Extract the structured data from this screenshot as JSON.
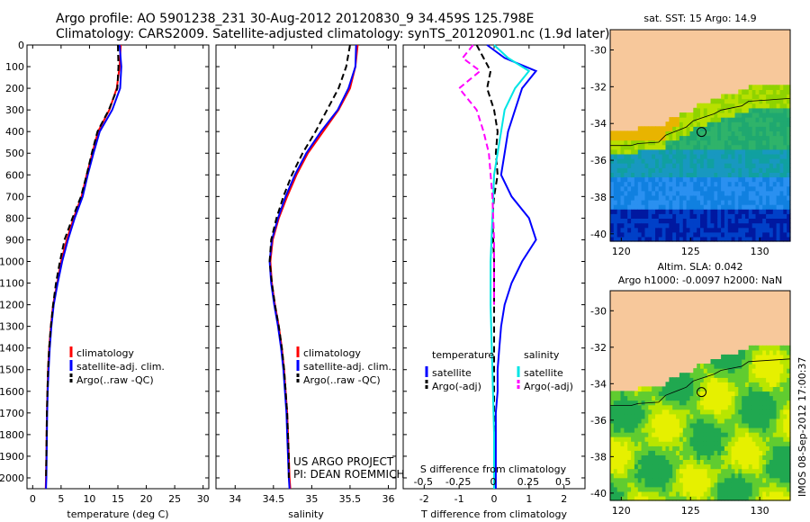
{
  "header": {
    "line1": "Argo profile: AO 5901238_231 30-Aug-2012 20120830_9 34.459S 125.798E",
    "line2": "Climatology: CARS2009. Satellite-adjusted climatology: synTS_20120901.nc (1.9d later)"
  },
  "credit": {
    "line1": "US ARGO PROJECT",
    "line2": "PI: DEAN ROEMMICH"
  },
  "timestamp": "IMOS 08-Sep-2012 17:00:37",
  "colors": {
    "climatology": "#ff0000",
    "satellite": "#0000ff",
    "argo": "#000000",
    "s_satellite": "#00e5e5",
    "s_argo": "#ff00ff",
    "land": "#f7c89b"
  },
  "chart_data": [
    {
      "id": "temperature",
      "type": "line",
      "xlabel": "temperature (deg C)",
      "ylabel": "",
      "xlim": [
        -1,
        31
      ],
      "ylim": [
        2050,
        0
      ],
      "xticks": [
        0,
        5,
        10,
        15,
        20,
        25,
        30
      ],
      "yticks": [
        0,
        100,
        200,
        300,
        400,
        500,
        600,
        700,
        800,
        900,
        1000,
        1100,
        1200,
        1300,
        1400,
        1500,
        1600,
        1700,
        1800,
        1900,
        2000
      ],
      "legend": [
        "climatology",
        "satellite-adj. clim.",
        "Argo(..raw -QC)"
      ],
      "series": [
        {
          "name": "climatology",
          "color": "#ff0000",
          "dash": "",
          "x": [
            15.5,
            15.3,
            14.8,
            13.5,
            11.5,
            10.5,
            9.5,
            8.6,
            7.2,
            6.0,
            5.0,
            4.3,
            3.6,
            3.2,
            2.9,
            2.7,
            2.6,
            2.5,
            2.45,
            2.4,
            2.35,
            2.3
          ],
          "y": [
            0,
            100,
            200,
            300,
            400,
            500,
            600,
            700,
            800,
            900,
            1000,
            1100,
            1200,
            1300,
            1400,
            1500,
            1600,
            1700,
            1800,
            1900,
            2000,
            2050
          ]
        },
        {
          "name": "satellite-adj. clim.",
          "color": "#0000ff",
          "dash": "",
          "x": [
            15.3,
            15.6,
            15.4,
            14.0,
            11.8,
            10.7,
            9.7,
            8.8,
            7.4,
            6.2,
            5.2,
            4.4,
            3.7,
            3.3,
            3.0,
            2.8,
            2.65,
            2.55,
            2.5,
            2.45,
            2.4,
            2.35
          ],
          "y": [
            0,
            100,
            200,
            300,
            400,
            500,
            600,
            700,
            800,
            900,
            1000,
            1100,
            1200,
            1300,
            1400,
            1500,
            1600,
            1700,
            1800,
            1900,
            2000,
            2050
          ]
        },
        {
          "name": "Argo(..raw -QC)",
          "color": "#000000",
          "dash": "7,4",
          "x": [
            15.0,
            15.1,
            14.9,
            13.4,
            11.4,
            10.4,
            9.5,
            8.5,
            7.0,
            5.6,
            4.8,
            4.1,
            3.6,
            3.2,
            2.9,
            2.7,
            2.6,
            2.5,
            2.45,
            2.4,
            2.35
          ],
          "y": [
            0,
            100,
            200,
            300,
            400,
            500,
            600,
            700,
            800,
            900,
            1000,
            1100,
            1200,
            1300,
            1400,
            1500,
            1600,
            1700,
            1800,
            1900,
            2000
          ]
        }
      ]
    },
    {
      "id": "salinity",
      "type": "line",
      "xlabel": "salinity",
      "ylabel": "",
      "xlim": [
        33.75,
        36.1
      ],
      "ylim": [
        2050,
        0
      ],
      "xticks": [
        34,
        34.5,
        35,
        35.5,
        36
      ],
      "xticklabels": [
        "34",
        "34.5",
        "35",
        "35.5",
        "36"
      ],
      "legend": [
        "climatology",
        "satellite-adj. clim.",
        "Argo(..raw -QC)"
      ],
      "series": [
        {
          "name": "climatology",
          "color": "#ff0000",
          "dash": "",
          "x": [
            35.6,
            35.57,
            35.5,
            35.35,
            35.15,
            34.95,
            34.8,
            34.68,
            34.57,
            34.49,
            34.46,
            34.48,
            34.52,
            34.57,
            34.61,
            34.64,
            34.66,
            34.68,
            34.69,
            34.7,
            34.71,
            34.72
          ],
          "y": [
            0,
            100,
            200,
            300,
            400,
            500,
            600,
            700,
            800,
            900,
            1000,
            1100,
            1200,
            1300,
            1400,
            1500,
            1600,
            1700,
            1800,
            1900,
            2000,
            2050
          ]
        },
        {
          "name": "satellite-adj. clim.",
          "color": "#0000ff",
          "dash": "",
          "x": [
            35.58,
            35.57,
            35.48,
            35.34,
            35.12,
            34.93,
            34.78,
            34.66,
            34.56,
            34.48,
            34.45,
            34.47,
            34.51,
            34.56,
            34.6,
            34.63,
            34.65,
            34.67,
            34.68,
            34.69,
            34.7,
            34.71
          ],
          "y": [
            0,
            100,
            200,
            300,
            400,
            500,
            600,
            700,
            800,
            900,
            1000,
            1100,
            1200,
            1300,
            1400,
            1500,
            1600,
            1700,
            1800,
            1900,
            2000,
            2050
          ]
        },
        {
          "name": "Argo(..raw -QC)",
          "color": "#000000",
          "dash": "7,4",
          "x": [
            35.5,
            35.45,
            35.35,
            35.2,
            35.05,
            34.88,
            34.74,
            34.63,
            34.54,
            34.47,
            34.45,
            34.48,
            34.52,
            34.57,
            34.61,
            34.64,
            34.66,
            34.68,
            34.69,
            34.7,
            34.7
          ],
          "y": [
            0,
            100,
            200,
            300,
            400,
            500,
            600,
            700,
            800,
            900,
            1000,
            1100,
            1200,
            1300,
            1400,
            1500,
            1600,
            1700,
            1800,
            1900,
            2000
          ]
        }
      ]
    },
    {
      "id": "difference",
      "type": "line",
      "xlabel": "T difference from climatology",
      "xlabel_top": "S difference from climatology",
      "ylabel": "",
      "xlim": [
        -2.6,
        2.6
      ],
      "ylim": [
        2050,
        0
      ],
      "xticks": [
        -2,
        -1,
        0,
        1,
        2
      ],
      "xticks_top": [
        -0.5,
        -0.25,
        0,
        0.25,
        0.5
      ],
      "xticks_top_labels": [
        "-0.5",
        "-0.25",
        "0",
        "0.25",
        "0.5"
      ],
      "legend_t": {
        "title": "temperature",
        "items": [
          "satellite",
          "Argo(-adj)"
        ]
      },
      "legend_s": {
        "title": "salinity",
        "items": [
          "satellite",
          "Argo(-adj)"
        ]
      },
      "series": [
        {
          "name": "satellite",
          "group": "temperature",
          "color": "#0000ff",
          "dash": "",
          "x": [
            -0.2,
            0.3,
            1.2,
            0.8,
            0.6,
            0.4,
            0.3,
            0.2,
            0.5,
            1.0,
            1.2,
            0.8,
            0.5,
            0.3,
            0.2,
            0.15,
            0.1,
            0.1,
            0.05,
            0.05,
            0.05
          ],
          "y": [
            0,
            60,
            120,
            200,
            300,
            400,
            500,
            600,
            700,
            800,
            900,
            1000,
            1100,
            1200,
            1300,
            1400,
            1500,
            1600,
            1700,
            1800,
            2050
          ]
        },
        {
          "name": "Argo(-adj)",
          "group": "temperature",
          "color": "#000000",
          "dash": "7,4",
          "x": [
            -0.5,
            -0.3,
            -0.1,
            -0.2,
            0.0,
            0.1,
            0.05,
            0.1,
            0.0,
            -0.05,
            0.0,
            0.0,
            0.0,
            0.0,
            0.0
          ],
          "y": [
            0,
            60,
            120,
            200,
            300,
            400,
            500,
            600,
            700,
            800,
            1000,
            1200,
            1500,
            1800,
            2000
          ]
        },
        {
          "name": "satellite",
          "group": "salinity",
          "color": "#00e5e5",
          "dash": "",
          "x": [
            0.0,
            0.4,
            1.0,
            0.6,
            0.3,
            0.2,
            0.1,
            0.0,
            -0.05,
            -0.1,
            -0.1,
            -0.05,
            0.0,
            0.0
          ],
          "y": [
            0,
            60,
            120,
            200,
            300,
            400,
            500,
            600,
            800,
            1000,
            1200,
            1500,
            1800,
            2050
          ]
        },
        {
          "name": "Argo(-adj)",
          "group": "salinity",
          "color": "#ff00ff",
          "dash": "7,4",
          "x": [
            -0.6,
            -0.9,
            -0.4,
            -1.0,
            -0.5,
            -0.3,
            -0.15,
            -0.05,
            0.0,
            0.0
          ],
          "y": [
            0,
            60,
            120,
            200,
            300,
            400,
            500,
            700,
            900,
            1200
          ]
        }
      ]
    },
    {
      "id": "map-sst",
      "type": "heatmap",
      "title": "sat. SST: 15  Argo: 14.9",
      "xticks": [
        120,
        125,
        130
      ],
      "yticks": [
        -30,
        -32,
        -34,
        -36,
        -38,
        -40
      ],
      "xlim": [
        119.2,
        132.2
      ],
      "ylim": [
        -40.4,
        -28.9
      ],
      "float": {
        "lon": 125.798,
        "lat": -34.459
      }
    },
    {
      "id": "map-sla",
      "type": "heatmap",
      "title": "Altim. SLA: 0.042",
      "subtitle": "Argo h1000: -0.0097  h2000: NaN",
      "xticks": [
        120,
        125,
        130
      ],
      "yticks": [
        -30,
        -32,
        -34,
        -36,
        -38,
        -40
      ],
      "xlim": [
        119.2,
        132.2
      ],
      "ylim": [
        -40.4,
        -28.9
      ],
      "float": {
        "lon": 125.798,
        "lat": -34.459
      }
    }
  ]
}
